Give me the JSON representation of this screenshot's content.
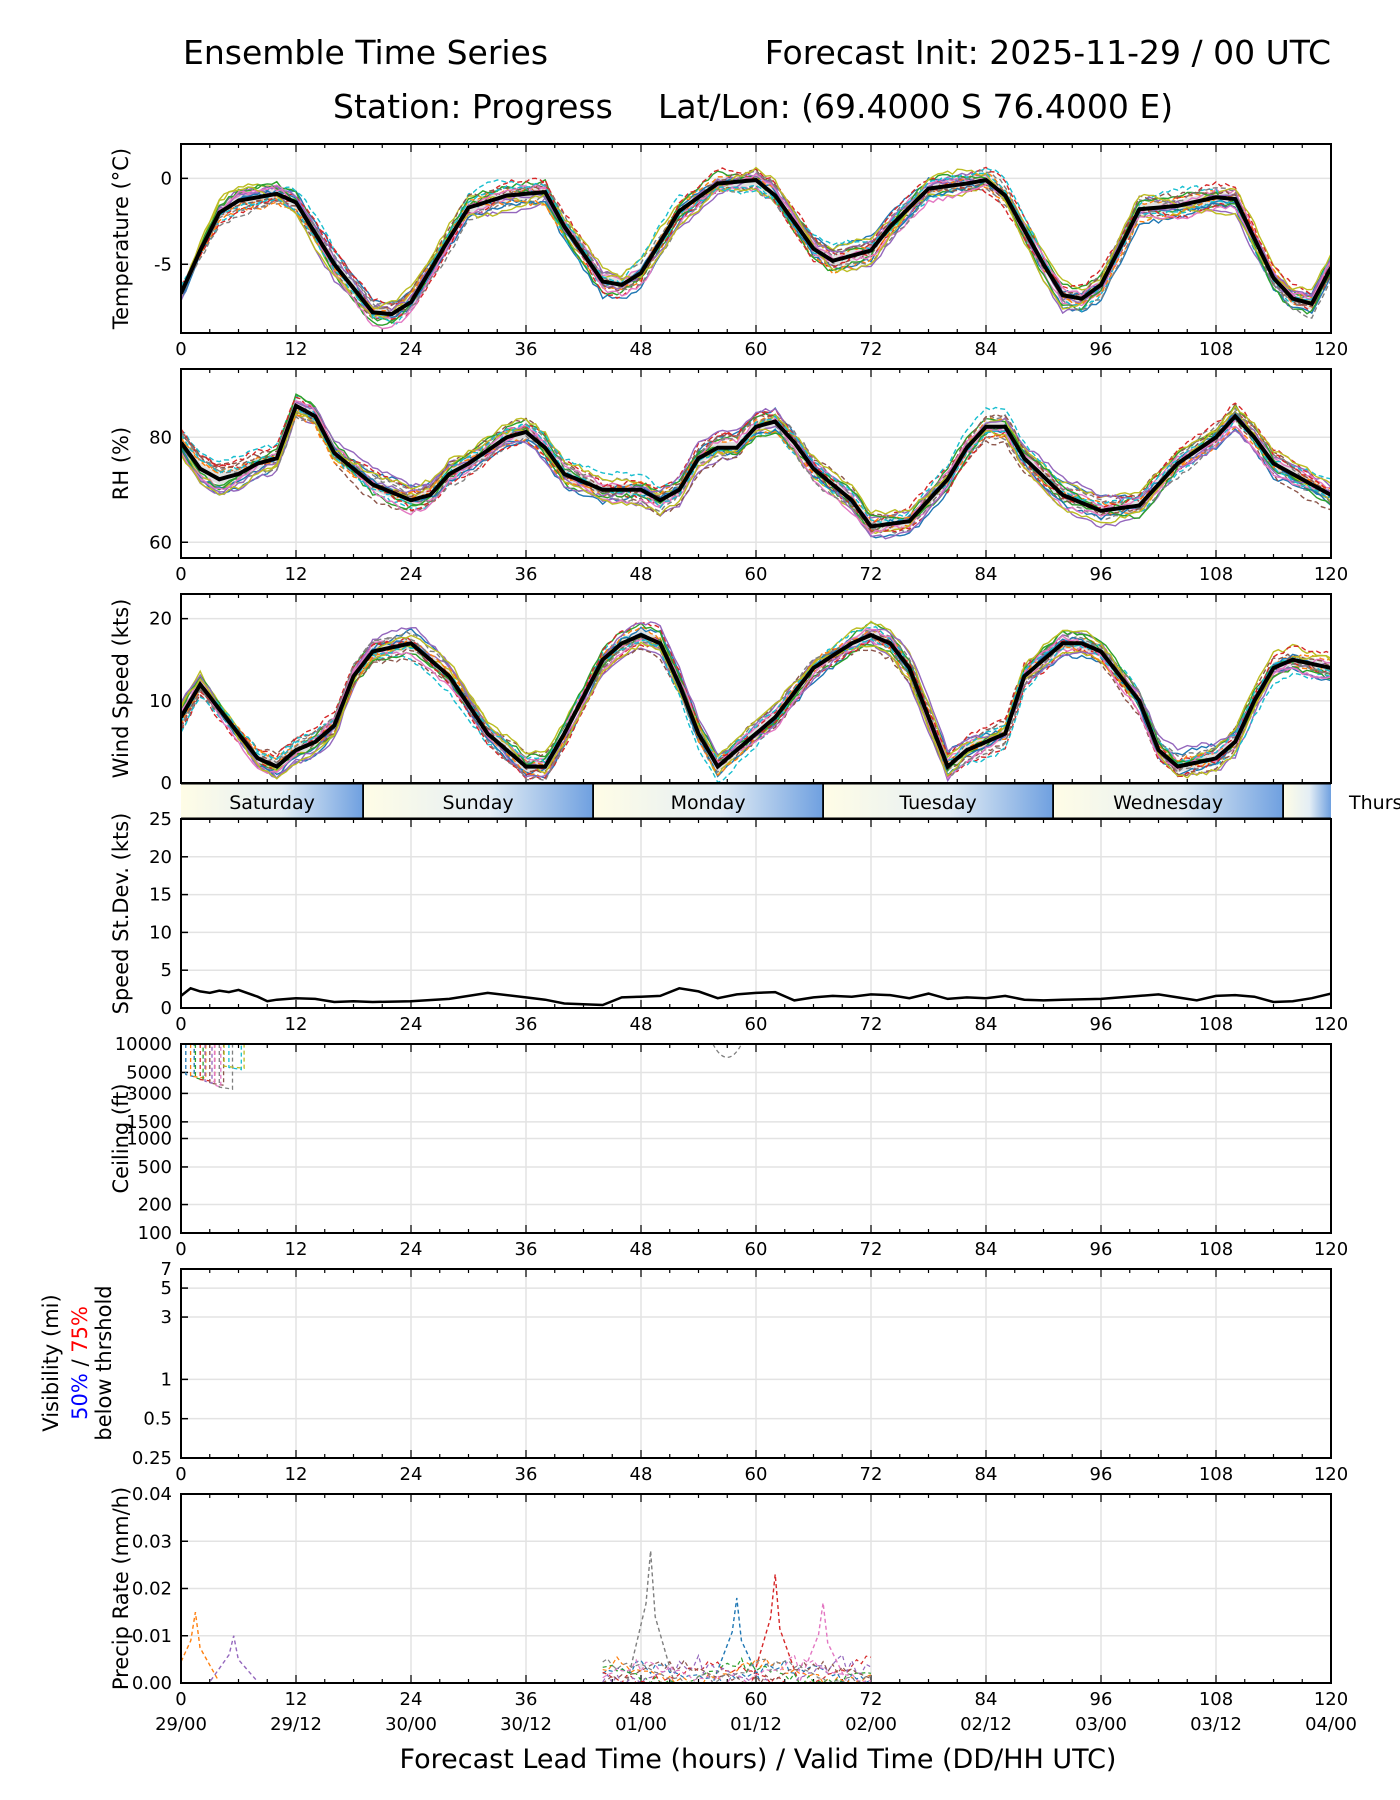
{
  "header": {
    "title_left": "Ensemble Time Series",
    "title_right": "Forecast Init: 2025-11-29 / 00 UTC",
    "station": "Station: Progress",
    "latlon": "Lat/Lon: (69.4000 S 76.4000 E)"
  },
  "x_axis": {
    "label": "Forecast Lead Time (hours) / Valid Time (DD/HH UTC)",
    "lead_ticks": [
      "0",
      "12",
      "24",
      "36",
      "48",
      "60",
      "72",
      "84",
      "96",
      "108",
      "120"
    ],
    "valid_ticks": [
      "29/00",
      "29/12",
      "30/00",
      "30/12",
      "01/00",
      "01/12",
      "02/00",
      "02/12",
      "03/00",
      "03/12",
      "04/00"
    ]
  },
  "day_strip": [
    "Saturday",
    "Sunday",
    "Monday",
    "Tuesday",
    "Wednesday",
    "Thurs"
  ],
  "colors": {
    "mean": "#000000",
    "spread": "#cfcfcf",
    "vis_50": "#0000ff",
    "vis_75": "#ff0000",
    "members": [
      "#1f77b4",
      "#ff7f0e",
      "#2ca02c",
      "#d62728",
      "#9467bd",
      "#8c564b",
      "#e377c2",
      "#7f7f7f",
      "#bcbd22",
      "#17becf"
    ]
  },
  "chart_data": [
    {
      "id": "temperature",
      "type": "line",
      "ylabel": "Temperature (°C)",
      "ylim": [
        -9,
        2
      ],
      "yticks": [
        "0",
        "-5"
      ],
      "ytick_values": [
        0,
        -5
      ],
      "mean_series": {
        "x": [
          0,
          2,
          4,
          6,
          8,
          10,
          12,
          16,
          20,
          22,
          24,
          28,
          30,
          34,
          38,
          40,
          44,
          46,
          48,
          52,
          56,
          60,
          62,
          66,
          68,
          72,
          74,
          78,
          82,
          84,
          86,
          90,
          92,
          94,
          96,
          100,
          104,
          108,
          110,
          114,
          116,
          118,
          120
        ],
        "y": [
          -6.7,
          -4.2,
          -2.0,
          -1.3,
          -1.1,
          -0.9,
          -1.4,
          -5.0,
          -7.8,
          -7.9,
          -7.2,
          -3.5,
          -1.7,
          -1.0,
          -0.8,
          -2.8,
          -6.0,
          -6.2,
          -5.5,
          -1.9,
          -0.3,
          -0.1,
          -1.0,
          -4.1,
          -4.8,
          -4.2,
          -2.8,
          -0.6,
          -0.3,
          -0.1,
          -1.0,
          -5.0,
          -6.8,
          -7.0,
          -6.2,
          -1.8,
          -1.6,
          -1.1,
          -1.2,
          -5.8,
          -7.0,
          -7.3,
          -5.2
        ]
      },
      "member_count": 20
    },
    {
      "id": "rh",
      "type": "line",
      "ylabel": "RH (%)",
      "ylim": [
        57,
        93
      ],
      "yticks": [
        "80",
        "60"
      ],
      "ytick_values": [
        80,
        60
      ],
      "mean_series": {
        "x": [
          0,
          2,
          4,
          6,
          8,
          10,
          12,
          14,
          16,
          20,
          24,
          26,
          28,
          30,
          34,
          36,
          38,
          40,
          44,
          48,
          50,
          52,
          54,
          56,
          58,
          60,
          62,
          64,
          66,
          70,
          72,
          76,
          80,
          82,
          84,
          86,
          88,
          92,
          96,
          100,
          102,
          104,
          108,
          110,
          112,
          114,
          116,
          120
        ],
        "y": [
          79,
          74,
          72,
          73,
          75,
          76,
          86,
          84,
          77,
          71,
          68,
          69,
          73,
          75,
          80,
          81,
          78,
          73,
          70,
          70,
          68,
          70,
          76,
          78,
          78,
          82,
          83,
          79,
          74,
          68,
          63,
          64,
          72,
          78,
          82,
          82,
          76,
          69,
          66,
          67,
          71,
          75,
          80,
          84,
          80,
          75,
          73,
          69
        ]
      },
      "member_count": 20
    },
    {
      "id": "wind_speed",
      "type": "line",
      "ylabel": "Wind Speed (kts)",
      "ylim": [
        0,
        23
      ],
      "yticks": [
        "20",
        "10",
        "0"
      ],
      "ytick_values": [
        20,
        10,
        0
      ],
      "mean_series": {
        "x": [
          0,
          2,
          4,
          6,
          8,
          10,
          12,
          14,
          16,
          18,
          20,
          24,
          28,
          32,
          36,
          38,
          40,
          44,
          46,
          48,
          50,
          52,
          54,
          56,
          58,
          60,
          62,
          64,
          66,
          70,
          72,
          74,
          76,
          78,
          80,
          82,
          84,
          86,
          88,
          92,
          94,
          96,
          100,
          102,
          104,
          108,
          110,
          112,
          114,
          116,
          120
        ],
        "y": [
          8,
          12,
          9,
          6,
          3,
          2,
          4,
          5,
          7,
          13,
          16,
          17,
          13,
          6,
          2,
          2,
          6,
          15,
          17,
          18,
          17,
          12,
          6,
          2,
          4,
          6,
          8,
          11,
          14,
          17,
          18,
          17,
          14,
          8,
          2,
          4,
          5,
          6,
          13,
          17,
          17,
          16,
          10,
          4,
          2,
          3,
          5,
          10,
          14,
          15,
          14
        ]
      },
      "member_count": 20
    },
    {
      "id": "speed_stdev",
      "type": "line",
      "ylabel": "Speed St.Dev. (kts)",
      "ylim": [
        0,
        25
      ],
      "yticks": [
        "25",
        "20",
        "15",
        "10",
        "5",
        "0"
      ],
      "ytick_values": [
        25,
        20,
        15,
        10,
        5,
        0
      ],
      "series": {
        "x": [
          0,
          1,
          2,
          3,
          4,
          5,
          6,
          8,
          9,
          10,
          12,
          14,
          16,
          18,
          20,
          24,
          28,
          32,
          36,
          38,
          40,
          42,
          44,
          46,
          48,
          50,
          52,
          54,
          56,
          58,
          60,
          62,
          64,
          66,
          68,
          70,
          72,
          74,
          76,
          78,
          80,
          82,
          84,
          86,
          88,
          90,
          92,
          96,
          100,
          102,
          104,
          106,
          108,
          110,
          112,
          114,
          116,
          118,
          120
        ],
        "y": [
          1.6,
          2.6,
          2.2,
          2.0,
          2.3,
          2.1,
          2.4,
          1.5,
          0.9,
          1.1,
          1.3,
          1.2,
          0.8,
          0.9,
          0.8,
          0.9,
          1.2,
          2.0,
          1.4,
          1.1,
          0.6,
          0.5,
          0.4,
          1.4,
          1.5,
          1.6,
          2.6,
          2.2,
          1.3,
          1.8,
          2.0,
          2.1,
          1.0,
          1.4,
          1.6,
          1.5,
          1.8,
          1.7,
          1.3,
          1.9,
          1.2,
          1.4,
          1.3,
          1.6,
          1.1,
          1.0,
          1.1,
          1.2,
          1.6,
          1.8,
          1.4,
          1.0,
          1.6,
          1.7,
          1.5,
          0.8,
          0.9,
          1.3,
          1.9
        ]
      }
    },
    {
      "id": "ceiling",
      "type": "line",
      "ylabel": "Ceiling (ft)",
      "scale": "log",
      "ylim": [
        100,
        10000
      ],
      "yticks": [
        "10000",
        "5000",
        "3000",
        "1500",
        "1000",
        "500",
        "200",
        "100"
      ],
      "ytick_values": [
        10000,
        5000,
        3000,
        1500,
        1000,
        500,
        200,
        100
      ],
      "notes": "most members above 10000 ft; brief low ceilings near 1-5 h"
    },
    {
      "id": "visibility",
      "type": "line",
      "ylabel_lines": [
        "Visibility (mi)",
        "50% / 75%",
        "below thrshold"
      ],
      "label_pct_50": "50%",
      "label_pct_sep": " / ",
      "label_pct_75": "75%",
      "scale": "log",
      "ylim": [
        0.25,
        7
      ],
      "yticks": [
        "7",
        "5",
        "3",
        "1",
        "0.5",
        "0.25"
      ],
      "ytick_values": [
        7,
        5,
        3,
        1,
        0.5,
        0.25
      ],
      "notes": "no values below threshold"
    },
    {
      "id": "precip_rate",
      "type": "line",
      "ylabel": "Precip Rate (mm/h)",
      "ylim": [
        0,
        0.04
      ],
      "yticks": [
        "0.04",
        "0.03",
        "0.02",
        "0.01",
        "0.00"
      ],
      "ytick_values": [
        0.04,
        0.03,
        0.02,
        0.01,
        0
      ],
      "peaks": [
        {
          "x": 1.5,
          "y": 0.015
        },
        {
          "x": 5.5,
          "y": 0.01
        },
        {
          "x": 49,
          "y": 0.028
        },
        {
          "x": 58,
          "y": 0.018
        },
        {
          "x": 62,
          "y": 0.023
        },
        {
          "x": 67,
          "y": 0.017
        }
      ]
    }
  ]
}
